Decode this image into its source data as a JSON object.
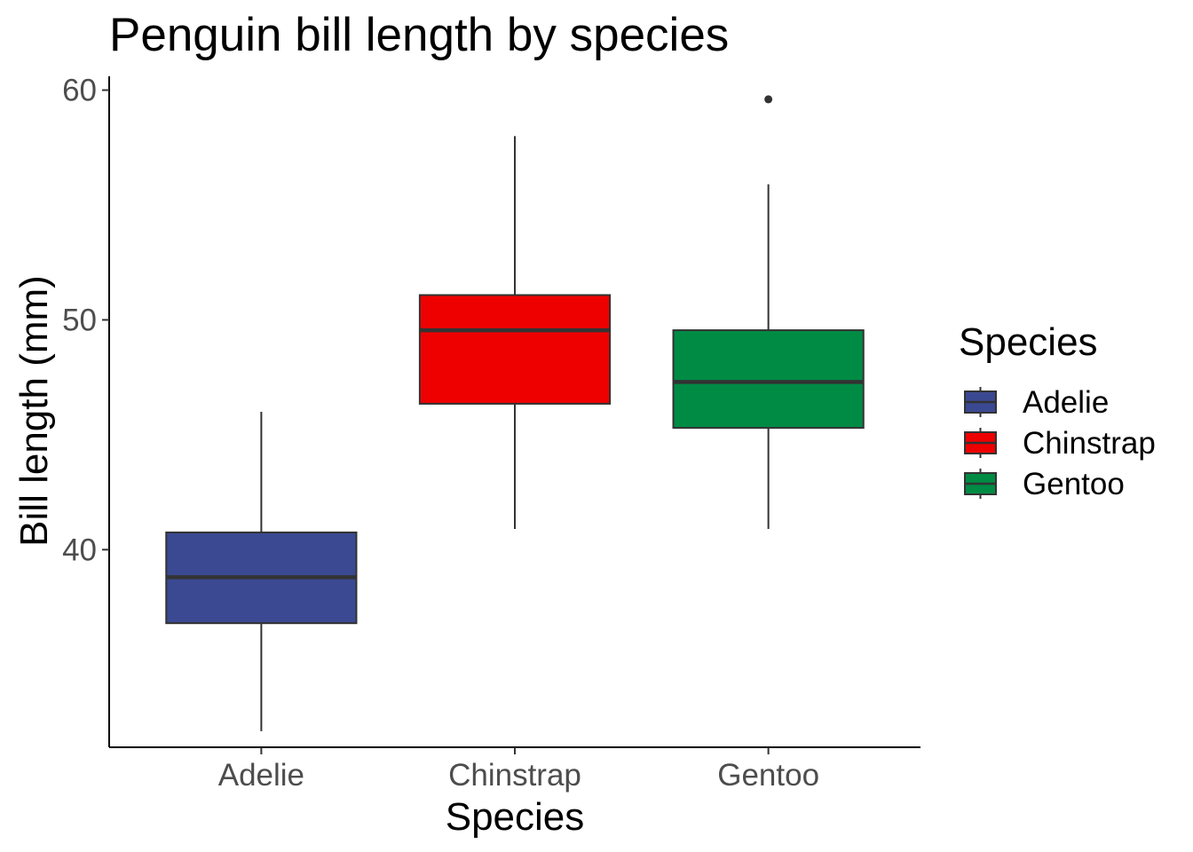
{
  "chart_data": {
    "type": "boxplot",
    "title": "Penguin bill length by species",
    "xlabel": "Species",
    "ylabel": "Bill length (mm)",
    "ylim": [
      31.4,
      60.6
    ],
    "yticks": [
      40,
      50,
      60
    ],
    "ytick_labels": [
      "40",
      "50",
      "60"
    ],
    "grid": false,
    "categories": [
      "Adelie",
      "Chinstrap",
      "Gentoo"
    ],
    "series": [
      {
        "name": "Adelie",
        "color": "#3B4992",
        "min": 32.1,
        "q1": 36.8,
        "median": 38.8,
        "q3": 40.75,
        "max": 46.0,
        "outliers": []
      },
      {
        "name": "Chinstrap",
        "color": "#EE0000",
        "min": 40.9,
        "q1": 46.35,
        "median": 49.55,
        "q3": 51.08,
        "max": 58.0,
        "outliers": []
      },
      {
        "name": "Gentoo",
        "color": "#008B45",
        "min": 40.9,
        "q1": 45.3,
        "median": 47.3,
        "q3": 49.55,
        "max": 55.9,
        "outliers": [
          59.6
        ]
      }
    ],
    "legend": {
      "title": "Species",
      "position": "right",
      "entries": [
        "Adelie",
        "Chinstrap",
        "Gentoo"
      ]
    }
  }
}
